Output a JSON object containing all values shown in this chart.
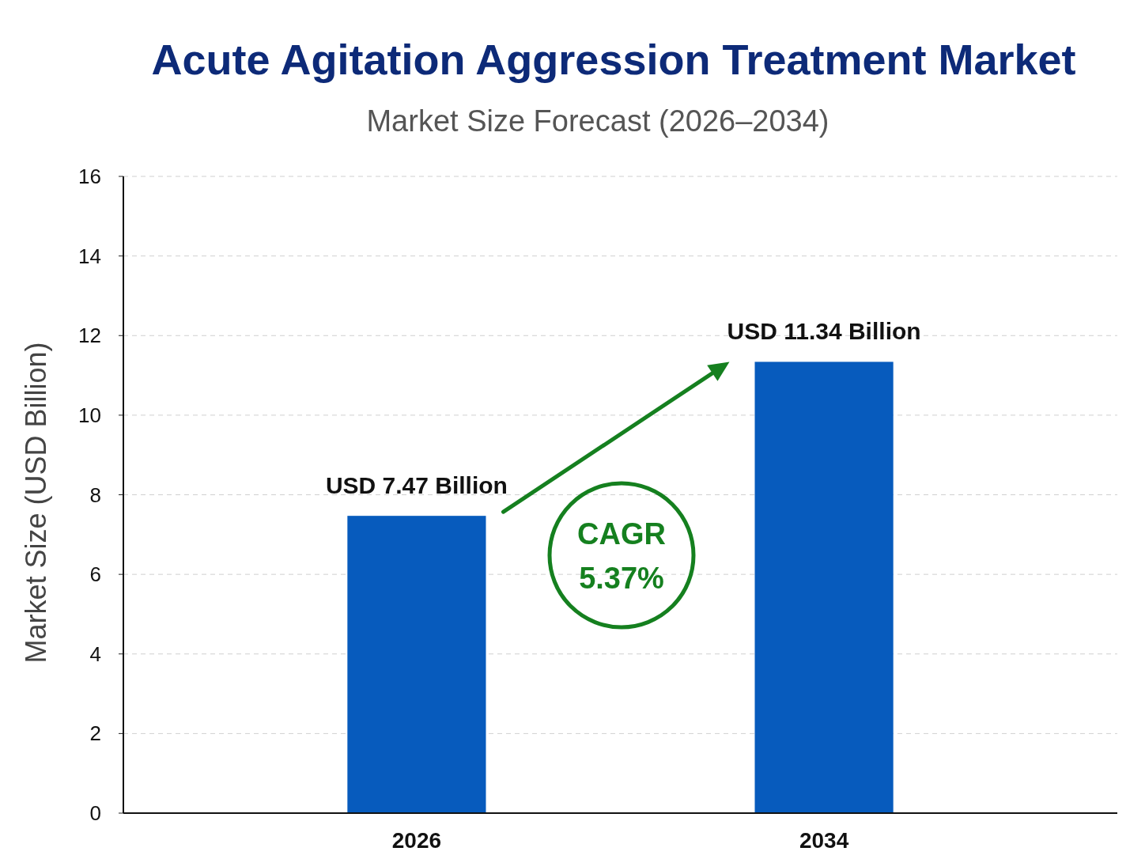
{
  "chart_data": {
    "type": "bar",
    "title": "Acute Agitation Aggression Treatment Market",
    "subtitle": "Market Size Forecast (2026–2034)",
    "ylabel": "Market Size (USD Billion)",
    "categories": [
      "2026",
      "2034"
    ],
    "values": [
      7.47,
      11.34
    ],
    "color": "#075bbd",
    "value_labels": [
      "USD 7.47 Billion",
      "USD 11.34 Billion"
    ],
    "ylim": [
      0,
      16
    ],
    "yticks": [
      0,
      2,
      4,
      6,
      8,
      10,
      12,
      14,
      16
    ],
    "grid": "y",
    "annotations": [
      "CAGR 5.37%"
    ]
  }
}
